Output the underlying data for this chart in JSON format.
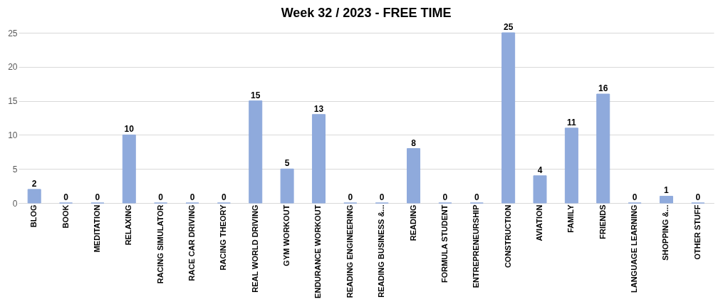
{
  "chart_data": {
    "type": "bar",
    "title": "Week 32 / 2023 - FREE TIME",
    "categories": [
      "BLOG",
      "BOOK",
      "MEDITATION",
      "RELAXING",
      "RACING SIMULATOR",
      "RACE CAR DRIVING",
      "RACING THEORY",
      "REAL WORLD DRIVING",
      "GYM WORKOUT",
      "ENDURANCE WORKOUT",
      "READING ENGINEERING",
      "READING BUSINESS &...",
      "READING",
      "FORMULA STUDENT",
      "ENTREPRENEURSHIP",
      "CONSTRUCTION",
      "AVIATION",
      "FAMILY",
      "FRIENDS",
      "LANGUAGE LEARNING",
      "SHOPPING &...",
      "OTHER STUFF"
    ],
    "values": [
      2,
      0,
      0,
      10,
      0,
      0,
      0,
      15,
      5,
      13,
      0,
      0,
      8,
      0,
      0,
      25,
      4,
      11,
      16,
      0,
      1,
      0
    ],
    "color": "#8faadc",
    "ylim": [
      0,
      25
    ],
    "yticks": [
      0,
      5,
      10,
      15,
      20,
      25
    ],
    "grid": "y",
    "data_labels": true
  }
}
